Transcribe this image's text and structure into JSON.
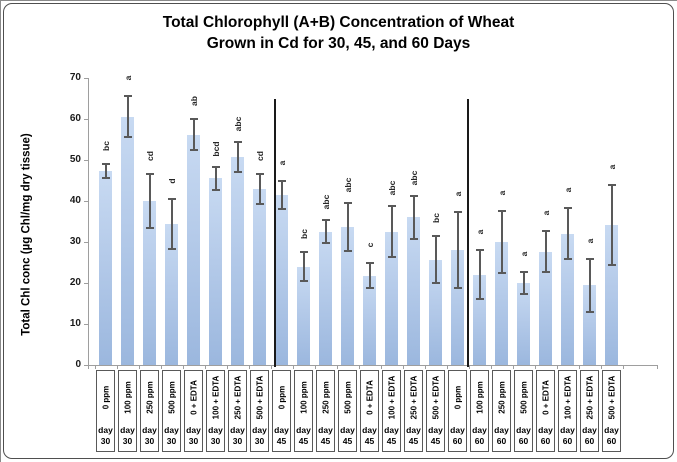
{
  "figure": {
    "title_line1": "Total Chlorophyll (A+B) Concentration of Wheat",
    "title_line2": "Grown in Cd for 30, 45, and 60 Days"
  },
  "colors": {
    "bar_gradient_top": "#c8daf2",
    "bar_gradient_bottom": "#9bb7de",
    "error_bar": "#595959",
    "axis": "#9e9e9e",
    "group_divider": "#1a1a1a",
    "category_cell_border": "#595959",
    "text": "#000000"
  },
  "chart_data": {
    "type": "bar",
    "title": "Total Chlorophyll (A+B) Concentration of Wheat Grown in Cd for 30, 45, and 60 Days",
    "xlabel": "",
    "ylabel": "Total Chl conc (µg  Chl/mg dry tissue)",
    "ylim": [
      0,
      70
    ],
    "y_ticks": [
      0,
      10,
      20,
      30,
      40,
      50,
      60,
      70
    ],
    "grid": false,
    "legend": "none",
    "error_bars": true,
    "group_days": [
      "day 30",
      "day 45",
      "day 60"
    ],
    "treatments_per_group": [
      "0 ppm",
      "100 ppm",
      "250 ppm",
      "500 ppm",
      "0 + EDTA",
      "100 + EDTA",
      "250 + EDTA",
      "500 + EDTA"
    ],
    "separators_after_bar": [
      8,
      17
    ],
    "bars": [
      {
        "treatment": "0 ppm",
        "day": "day 30",
        "value": 47.3,
        "error": 1.8,
        "letter": "bc"
      },
      {
        "treatment": "100 ppm",
        "day": "day 30",
        "value": 60.5,
        "error": 5.0,
        "letter": "a"
      },
      {
        "treatment": "250 ppm",
        "day": "day 30",
        "value": 40.0,
        "error": 6.5,
        "letter": "cd"
      },
      {
        "treatment": "500 ppm",
        "day": "day 30",
        "value": 34.4,
        "error": 6.0,
        "letter": "d"
      },
      {
        "treatment": "0 + EDTA",
        "day": "day 30",
        "value": 56.2,
        "error": 3.8,
        "letter": "ab"
      },
      {
        "treatment": "100 + EDTA",
        "day": "day 30",
        "value": 45.5,
        "error": 2.7,
        "letter": "bcd"
      },
      {
        "treatment": "250 + EDTA",
        "day": "day 30",
        "value": 50.8,
        "error": 3.7,
        "letter": "abc"
      },
      {
        "treatment": "500 + EDTA",
        "day": "day 30",
        "value": 43.0,
        "error": 3.7,
        "letter": "cd"
      },
      {
        "treatment": "0 ppm",
        "day": "day 45",
        "value": 41.5,
        "error": 3.5,
        "letter": "a"
      },
      {
        "treatment": "100 ppm",
        "day": "day 45",
        "value": 24.0,
        "error": 3.5,
        "letter": "bc"
      },
      {
        "treatment": "250 ppm",
        "day": "day 45",
        "value": 32.5,
        "error": 2.8,
        "letter": "abc"
      },
      {
        "treatment": "500 ppm",
        "day": "day 45",
        "value": 33.7,
        "error": 5.8,
        "letter": "abc"
      },
      {
        "treatment": "0 + EDTA",
        "day": "day 45",
        "value": 21.8,
        "error": 3.0,
        "letter": "c"
      },
      {
        "treatment": "100 + EDTA",
        "day": "day 45",
        "value": 32.5,
        "error": 6.2,
        "letter": "abc"
      },
      {
        "treatment": "250 + EDTA",
        "day": "day 45",
        "value": 36.0,
        "error": 5.3,
        "letter": "abc"
      },
      {
        "treatment": "500 + EDTA",
        "day": "day 45",
        "value": 25.7,
        "error": 5.7,
        "letter": "bc"
      },
      {
        "treatment": "0 ppm",
        "day": "day 60",
        "value": 28.0,
        "error": 9.2,
        "letter": "a"
      },
      {
        "treatment": "100 ppm",
        "day": "day 60",
        "value": 22.0,
        "error": 6.0,
        "letter": "a"
      },
      {
        "treatment": "250 ppm",
        "day": "day 60",
        "value": 30.0,
        "error": 7.5,
        "letter": "a"
      },
      {
        "treatment": "500 ppm",
        "day": "day 60",
        "value": 20.0,
        "error": 2.8,
        "letter": "a"
      },
      {
        "treatment": "0 + EDTA",
        "day": "day 60",
        "value": 27.6,
        "error": 5.0,
        "letter": "a"
      },
      {
        "treatment": "100 + EDTA",
        "day": "day 60",
        "value": 32.0,
        "error": 6.2,
        "letter": "a"
      },
      {
        "treatment": "250 + EDTA",
        "day": "day 60",
        "value": 19.4,
        "error": 6.5,
        "letter": "a"
      },
      {
        "treatment": "500 + EDTA",
        "day": "day 60",
        "value": 34.2,
        "error": 9.7,
        "letter": "a"
      }
    ]
  }
}
